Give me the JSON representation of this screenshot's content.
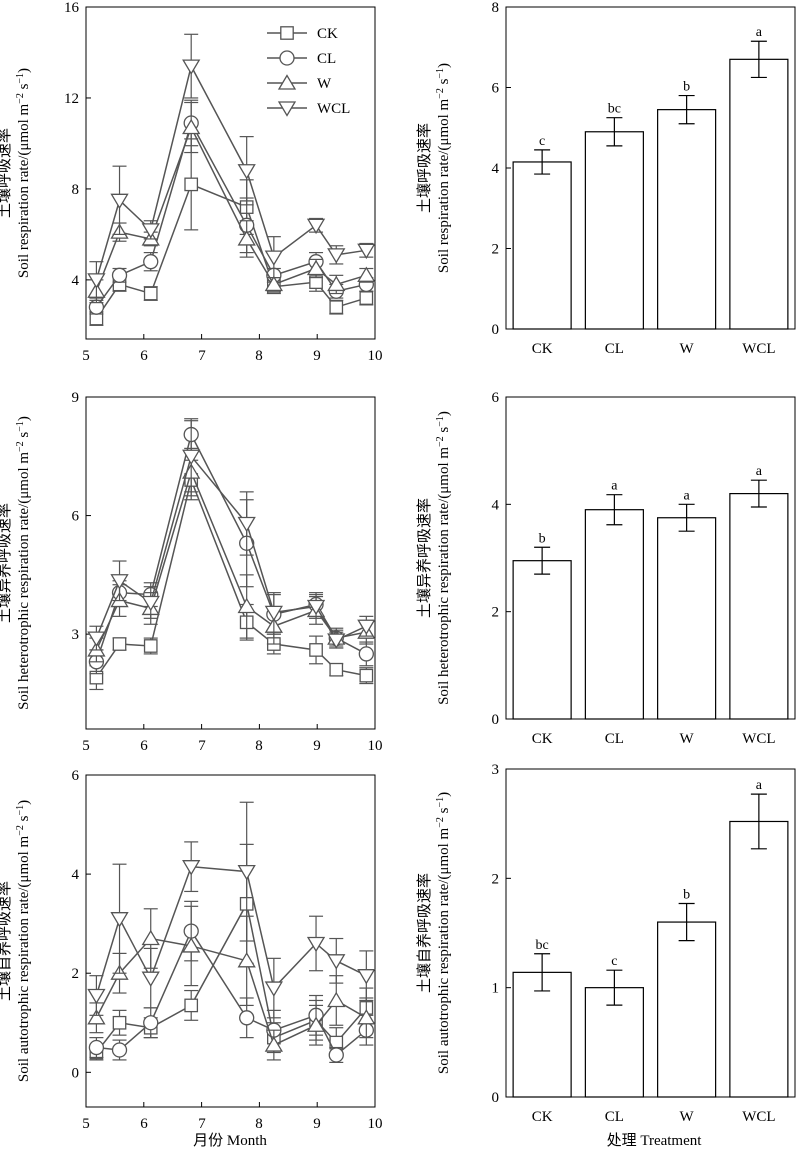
{
  "x_axis_title_line": "月份 Month",
  "x_axis_title_bar": "处理 Treatment",
  "legend": [
    {
      "name": "CK",
      "marker": "square"
    },
    {
      "name": "CL",
      "marker": "circle"
    },
    {
      "name": "W",
      "marker": "triangle-up"
    },
    {
      "name": "WCL",
      "marker": "triangle-down"
    }
  ],
  "chart_data": [
    {
      "type": "line",
      "ylabel_cn": "土壤呼吸速率",
      "ylabel_en": "Soil respiration rate/(μmol m",
      "xlim": [
        5,
        10
      ],
      "ylim": [
        1.4,
        16
      ],
      "xticks": [
        "5",
        "6",
        "7",
        "8",
        "9",
        "10"
      ],
      "yticks": [
        "4",
        "8",
        "12",
        "16"
      ],
      "x": [
        5.18,
        5.58,
        6.12,
        6.82,
        7.78,
        8.25,
        8.98,
        9.33,
        9.85
      ],
      "series": [
        {
          "name": "CK",
          "values": [
            2.3,
            3.8,
            3.4,
            8.2,
            7.2,
            3.7,
            3.9,
            2.8,
            3.2
          ],
          "errors": [
            0.3,
            0.3,
            0.3,
            2.0,
            1.2,
            0.3,
            0.4,
            0.3,
            0.3
          ]
        },
        {
          "name": "CL",
          "values": [
            2.8,
            4.2,
            4.8,
            10.9,
            6.4,
            4.2,
            4.8,
            3.5,
            3.8
          ],
          "errors": [
            0.3,
            0.3,
            0.4,
            1.0,
            1.2,
            0.3,
            0.4,
            0.3,
            0.3
          ]
        },
        {
          "name": "W",
          "values": [
            3.5,
            6.1,
            5.8,
            10.7,
            5.8,
            3.8,
            4.5,
            3.8,
            4.2
          ],
          "errors": [
            0.5,
            0.4,
            0.3,
            1.1,
            0.8,
            0.3,
            0.4,
            0.4,
            0.3
          ]
        },
        {
          "name": "WCL",
          "values": [
            4.0,
            7.5,
            6.2,
            13.4,
            8.8,
            5.0,
            6.4,
            5.1,
            5.3
          ],
          "errors": [
            0.8,
            1.5,
            0.4,
            1.4,
            1.5,
            0.9,
            0.3,
            0.4,
            0.3
          ]
        }
      ]
    },
    {
      "type": "bar",
      "ylabel_cn": "土壤呼吸速率",
      "ylabel_en": "Soil respiration rate/(μmol m",
      "categories": [
        "CK",
        "CL",
        "W",
        "WCL"
      ],
      "values": [
        4.15,
        4.9,
        5.45,
        6.7
      ],
      "errors": [
        0.3,
        0.35,
        0.35,
        0.45
      ],
      "significance": [
        "c",
        "bc",
        "b",
        "a"
      ],
      "ylim": [
        0,
        8
      ],
      "yticks": [
        "0",
        "2",
        "4",
        "6",
        "8"
      ]
    },
    {
      "type": "line",
      "ylabel_cn": "土壤异养呼吸速率",
      "ylabel_en": "Soil heterotrophic respiration rate/(μmol m",
      "xlim": [
        5,
        10
      ],
      "ylim": [
        0.6,
        9
      ],
      "xticks": [
        "5",
        "6",
        "7",
        "8",
        "9",
        "10"
      ],
      "yticks": [
        "3",
        "6",
        "9"
      ],
      "x": [
        5.18,
        5.58,
        6.12,
        6.82,
        7.78,
        8.25,
        8.98,
        9.33,
        9.85
      ],
      "series": [
        {
          "name": "CK",
          "values": [
            1.9,
            2.75,
            2.7,
            6.9,
            3.3,
            2.75,
            2.6,
            2.1,
            1.95
          ],
          "errors": [
            0.3,
            0.15,
            0.2,
            0.5,
            0.45,
            0.25,
            0.35,
            0.15,
            0.2
          ]
        },
        {
          "name": "CL",
          "values": [
            2.3,
            4.05,
            4.0,
            8.05,
            5.3,
            3.5,
            3.75,
            2.9,
            2.5
          ],
          "errors": [
            0.3,
            0.3,
            0.3,
            0.4,
            1.1,
            0.5,
            0.3,
            0.2,
            0.3
          ]
        },
        {
          "name": "W",
          "values": [
            2.6,
            3.85,
            3.65,
            7.1,
            3.7,
            3.2,
            3.6,
            2.9,
            3.05
          ],
          "errors": [
            0.3,
            0.4,
            0.4,
            0.6,
            0.8,
            0.45,
            0.35,
            0.25,
            0.3
          ]
        },
        {
          "name": "WCL",
          "values": [
            2.9,
            4.35,
            3.8,
            7.5,
            5.8,
            3.55,
            3.7,
            2.85,
            3.2
          ],
          "errors": [
            0.3,
            0.5,
            0.4,
            0.9,
            0.8,
            0.5,
            0.3,
            0.2,
            0.25
          ]
        }
      ]
    },
    {
      "type": "bar",
      "ylabel_cn": "土壤异养呼吸速率",
      "ylabel_en": "Soil heterotrophic respiration rate/(μmol m",
      "categories": [
        "CK",
        "CL",
        "W",
        "WCL"
      ],
      "values": [
        2.95,
        3.9,
        3.75,
        4.2
      ],
      "errors": [
        0.25,
        0.28,
        0.25,
        0.25
      ],
      "significance": [
        "b",
        "a",
        "a",
        "a"
      ],
      "ylim": [
        0,
        6
      ],
      "yticks": [
        "0",
        "2",
        "4",
        "6"
      ]
    },
    {
      "type": "line",
      "ylabel_cn": "土壤自养呼吸速率",
      "ylabel_en": "Soil autotrophic respiration rate/(μmol m",
      "xlim": [
        5,
        10
      ],
      "ylim": [
        -0.7,
        6
      ],
      "xticks": [
        "5",
        "6",
        "7",
        "8",
        "9",
        "10"
      ],
      "yticks": [
        "0",
        "2",
        "4",
        "6"
      ],
      "x": [
        5.18,
        5.58,
        6.12,
        6.82,
        7.78,
        8.25,
        8.98,
        9.33,
        9.85
      ],
      "series": [
        {
          "name": "CK",
          "values": [
            0.4,
            1.0,
            0.9,
            1.35,
            3.4,
            0.7,
            1.05,
            0.6,
            1.3
          ],
          "errors": [
            0.15,
            0.25,
            0.2,
            0.3,
            1.2,
            0.3,
            0.4,
            0.3,
            0.4
          ]
        },
        {
          "name": "CL",
          "values": [
            0.5,
            0.45,
            1.0,
            2.85,
            1.1,
            0.85,
            1.15,
            0.35,
            0.85
          ],
          "errors": [
            0.2,
            0.2,
            0.3,
            0.6,
            0.4,
            0.4,
            0.4,
            0.15,
            0.3
          ]
        },
        {
          "name": "W",
          "values": [
            1.1,
            2.0,
            2.7,
            2.55,
            2.25,
            0.55,
            0.95,
            1.45,
            1.1
          ],
          "errors": [
            0.3,
            0.4,
            0.6,
            0.8,
            0.9,
            0.3,
            0.4,
            0.5,
            0.4
          ]
        },
        {
          "name": "WCL",
          "values": [
            1.55,
            3.1,
            1.9,
            4.15,
            4.05,
            1.7,
            2.6,
            2.25,
            1.95
          ],
          "errors": [
            0.4,
            1.1,
            0.6,
            0.5,
            1.4,
            0.6,
            0.55,
            0.45,
            0.5
          ]
        }
      ]
    },
    {
      "type": "bar",
      "ylabel_cn": "土壤自养呼吸速率",
      "ylabel_en": "Soil autotrophic respiration rate/(μmol m",
      "categories": [
        "CK",
        "CL",
        "W",
        "WCL"
      ],
      "values": [
        1.14,
        1.0,
        1.6,
        2.52
      ],
      "errors": [
        0.17,
        0.16,
        0.17,
        0.25
      ],
      "significance": [
        "bc",
        "c",
        "b",
        "a"
      ],
      "ylim": [
        0,
        3
      ],
      "yticks": [
        "0",
        "1",
        "2",
        "3"
      ]
    }
  ]
}
